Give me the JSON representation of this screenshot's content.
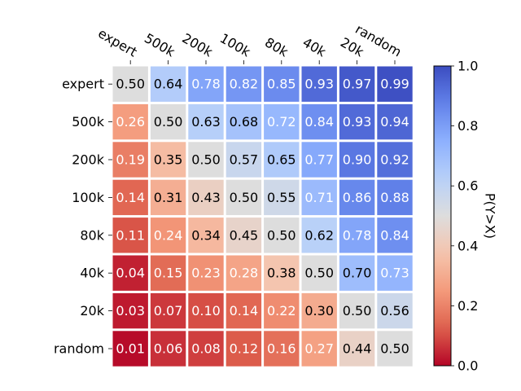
{
  "chart_data": {
    "type": "heatmap",
    "title": "",
    "colormap": "coolwarm_r",
    "x_labels": [
      "expert",
      "500k",
      "200k",
      "100k",
      "80k",
      "40k",
      "20k",
      "random"
    ],
    "y_labels": [
      "expert",
      "500k",
      "200k",
      "100k",
      "80k",
      "40k",
      "20k",
      "random"
    ],
    "values": [
      [
        0.5,
        0.64,
        0.78,
        0.82,
        0.85,
        0.93,
        0.97,
        0.99
      ],
      [
        0.26,
        0.5,
        0.63,
        0.68,
        0.72,
        0.84,
        0.93,
        0.94
      ],
      [
        0.19,
        0.35,
        0.5,
        0.57,
        0.65,
        0.77,
        0.9,
        0.92
      ],
      [
        0.14,
        0.31,
        0.43,
        0.5,
        0.55,
        0.71,
        0.86,
        0.88
      ],
      [
        0.11,
        0.24,
        0.34,
        0.45,
        0.5,
        0.62,
        0.78,
        0.84
      ],
      [
        0.04,
        0.15,
        0.23,
        0.28,
        0.38,
        0.5,
        0.7,
        0.73
      ],
      [
        0.03,
        0.07,
        0.1,
        0.14,
        0.22,
        0.3,
        0.5,
        0.56
      ],
      [
        0.01,
        0.06,
        0.08,
        0.12,
        0.16,
        0.27,
        0.44,
        0.5
      ]
    ],
    "colorbar": {
      "label": "P(Y>X)",
      "range": [
        0.0,
        1.0
      ],
      "ticks": [
        "0.0",
        "0.2",
        "0.4",
        "0.6",
        "0.8",
        "1.0"
      ]
    },
    "x_tick_position": "top",
    "grid": false
  }
}
